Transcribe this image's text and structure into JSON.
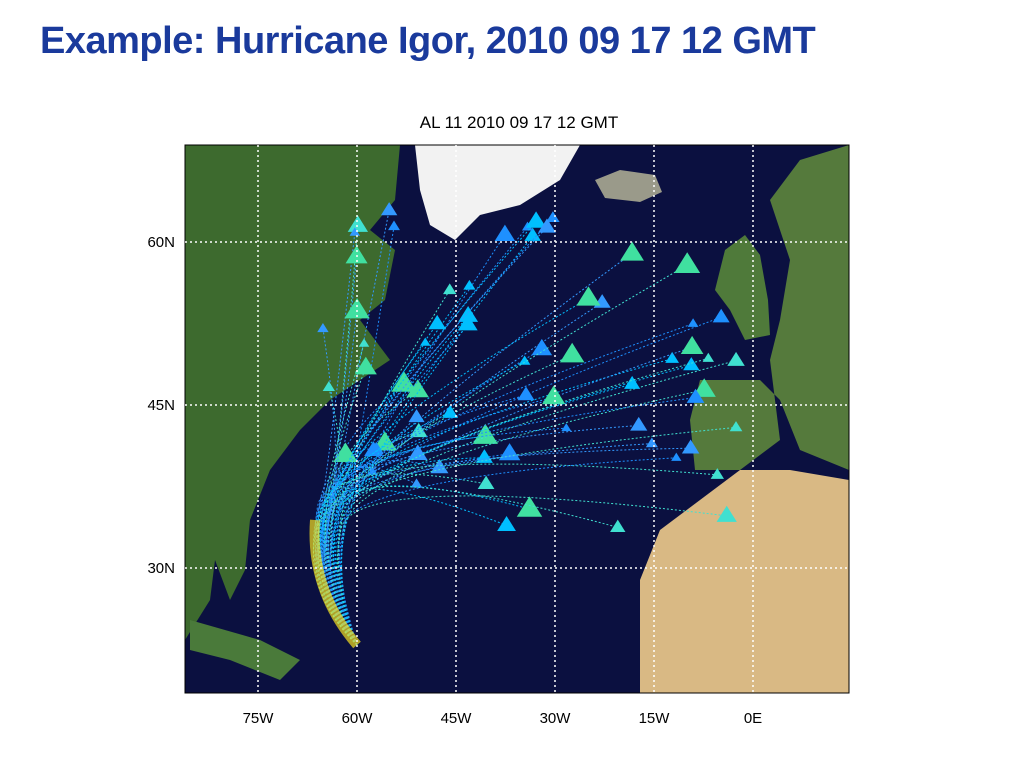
{
  "slide_title": "Example:  Hurricane Igor, 2010 09 17 12 GMT",
  "map": {
    "title": "AL 11 2010 09 17 12 GMT",
    "lat_labels": [
      "60N",
      "45N",
      "30N"
    ],
    "lon_labels": [
      "75W",
      "60W",
      "45W",
      "30W",
      "15W",
      "0E"
    ]
  }
}
